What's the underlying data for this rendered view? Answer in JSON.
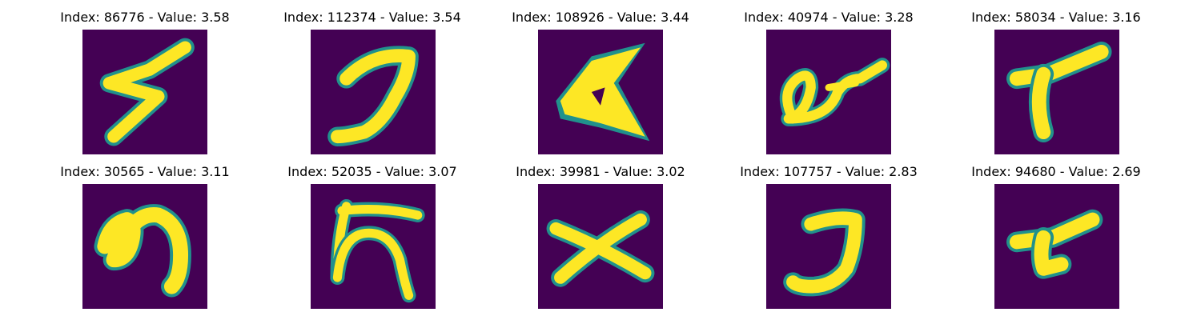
{
  "colors": {
    "background": "#440154",
    "edge": "#21918c",
    "mid": "#5ec962",
    "stroke": "#fde725"
  },
  "panels": [
    {
      "title": "Index: 86776 - Value: 3.58",
      "index": 86776,
      "value": 3.58
    },
    {
      "title": "Index: 112374 - Value: 3.54",
      "index": 112374,
      "value": 3.54
    },
    {
      "title": "Index: 108926 - Value: 3.44",
      "index": 108926,
      "value": 3.44
    },
    {
      "title": "Index: 40974 - Value: 3.28",
      "index": 40974,
      "value": 3.28
    },
    {
      "title": "Index: 58034 - Value: 3.16",
      "index": 58034,
      "value": 3.16
    },
    {
      "title": "Index: 30565 - Value: 3.11",
      "index": 30565,
      "value": 3.11
    },
    {
      "title": "Index: 52035 - Value: 3.07",
      "index": 52035,
      "value": 3.07
    },
    {
      "title": "Index: 39981 - Value: 3.02",
      "index": 39981,
      "value": 3.02
    },
    {
      "title": "Index: 107757 - Value: 2.83",
      "index": 107757,
      "value": 2.83
    },
    {
      "title": "Index: 94680 - Value: 2.69",
      "index": 94680,
      "value": 2.69
    }
  ]
}
